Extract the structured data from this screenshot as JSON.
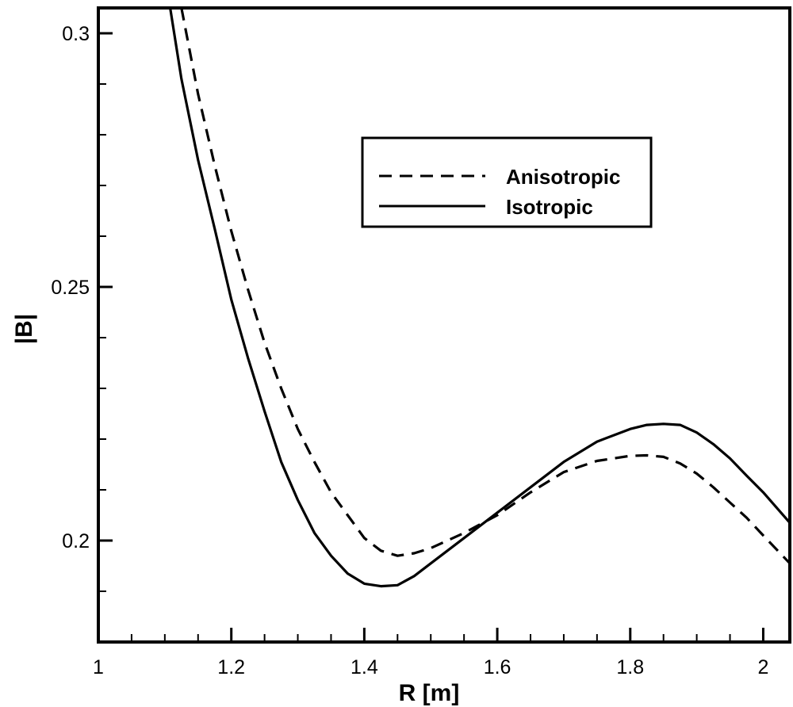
{
  "chart_data": {
    "type": "line",
    "title": "",
    "xlabel": "R [m]",
    "ylabel": "|B|",
    "xlim": [
      1.0,
      2.04
    ],
    "ylim": [
      0.18,
      0.305
    ],
    "x_ticks": [
      1.0,
      1.2,
      1.4,
      1.6,
      1.8,
      2.0
    ],
    "x_tick_labels": [
      "1",
      "1.2",
      "1.4",
      "1.6",
      "1.8",
      "2"
    ],
    "y_ticks": [
      0.2,
      0.25,
      0.3
    ],
    "y_tick_labels": [
      "0.2",
      "0.25",
      "0.3"
    ],
    "grid": false,
    "legend_position": "upper-right",
    "series": [
      {
        "name": "Anisotropic",
        "style": "dashed",
        "color": "#000000",
        "x": [
          1.125,
          1.15,
          1.175,
          1.2,
          1.225,
          1.25,
          1.275,
          1.3,
          1.325,
          1.35,
          1.375,
          1.4,
          1.425,
          1.45,
          1.475,
          1.5,
          1.55,
          1.6,
          1.65,
          1.7,
          1.75,
          1.8,
          1.825,
          1.85,
          1.875,
          1.9,
          1.925,
          1.95,
          1.975,
          2.0,
          2.04
        ],
        "y": [
          0.305,
          0.288,
          0.274,
          0.261,
          0.2495,
          0.239,
          0.23,
          0.222,
          0.2155,
          0.2095,
          0.205,
          0.2005,
          0.198,
          0.197,
          0.1975,
          0.1985,
          0.2015,
          0.205,
          0.2095,
          0.2135,
          0.2157,
          0.2167,
          0.2168,
          0.2165,
          0.2152,
          0.2132,
          0.2105,
          0.2075,
          0.2045,
          0.201,
          0.1955
        ]
      },
      {
        "name": "Isotropic",
        "style": "solid",
        "color": "#000000",
        "x": [
          1.108,
          1.125,
          1.15,
          1.175,
          1.2,
          1.225,
          1.25,
          1.275,
          1.3,
          1.325,
          1.35,
          1.375,
          1.4,
          1.425,
          1.45,
          1.475,
          1.5,
          1.55,
          1.6,
          1.65,
          1.7,
          1.75,
          1.8,
          1.825,
          1.85,
          1.875,
          1.9,
          1.925,
          1.95,
          1.975,
          2.0,
          2.04
        ],
        "y": [
          0.305,
          0.291,
          0.275,
          0.2615,
          0.2475,
          0.236,
          0.2255,
          0.2155,
          0.208,
          0.2015,
          0.197,
          0.1935,
          0.1915,
          0.191,
          0.1912,
          0.193,
          0.1955,
          0.2005,
          0.2055,
          0.2105,
          0.2155,
          0.2195,
          0.222,
          0.2228,
          0.223,
          0.2228,
          0.2213,
          0.219,
          0.2162,
          0.2128,
          0.2095,
          0.2035
        ]
      }
    ]
  }
}
